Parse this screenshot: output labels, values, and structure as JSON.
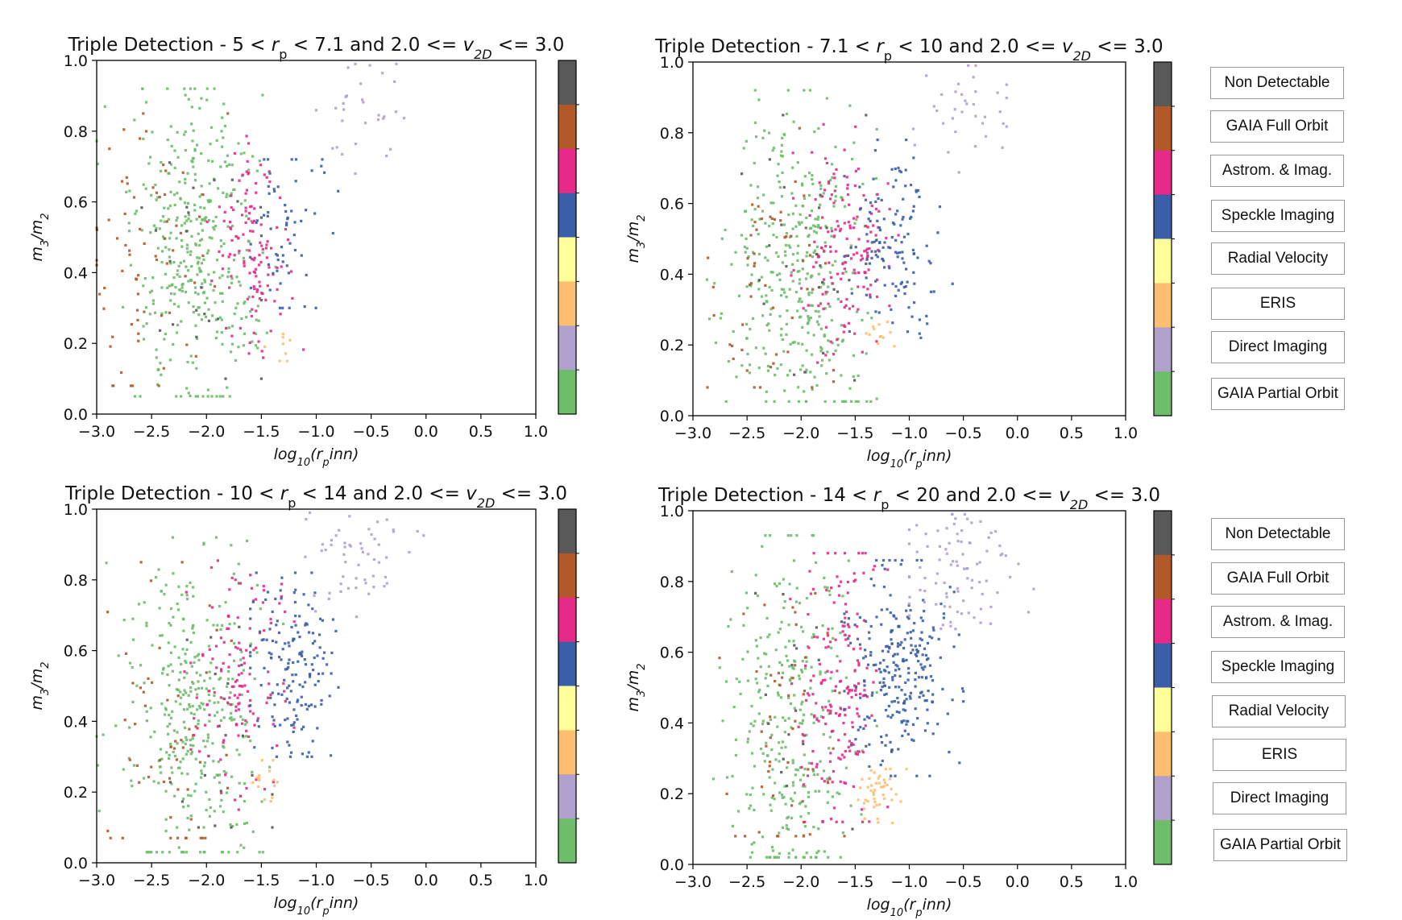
{
  "colors": {
    "Non Detectable": "#595959",
    "GAIA Full Orbit": "#b15928",
    "Astrom. & Imag.": "#e7298a",
    "Speckle Imaging": "#3a5fa8",
    "Radial Velocity": "#ffff99",
    "ERIS": "#fdbf6f",
    "Direct Imaging": "#b2a0cc",
    "GAIA Partial Orbit": "#6dbd6a"
  },
  "colorbar_order_top_to_bottom": [
    "Non Detectable",
    "GAIA Full Orbit",
    "Astrom. & Imag.",
    "Speckle Imaging",
    "Radial Velocity",
    "ERIS",
    "Direct Imaging",
    "GAIA Partial Orbit"
  ],
  "legend_top": [
    "Non Detectable",
    "GAIA Full Orbit",
    "Astrom. & Imag.",
    "Speckle Imaging",
    "Radial Velocity",
    "ERIS",
    "Direct Imaging",
    "GAIA Partial Orbit"
  ],
  "legend_bottom": [
    "Non Detectable",
    "GAIA Full Orbit",
    "Astrom. & Imag.",
    "Speckle Imaging",
    "Radial Velocity",
    "ERIS",
    "Direct Imaging",
    "GAIA Partial Orbit"
  ],
  "chart_data": [
    {
      "type": "scatter",
      "title_prefix": "Triple Detection - ",
      "rp_low": "5",
      "rp_high": "7.1",
      "v_low": "2.0",
      "v_high": "3.0",
      "xlabel": "log10(rp inn)",
      "ylabel": "m3/m2",
      "xlim": [
        -3.0,
        1.0
      ],
      "ylim": [
        0.0,
        1.0
      ],
      "xticks": [
        "−3.0",
        "−2.5",
        "−2.0",
        "−1.5",
        "−1.0",
        "−0.5",
        "0.0",
        "0.5",
        "1.0"
      ],
      "yticks": [
        "0.0",
        "0.2",
        "0.4",
        "0.6",
        "0.8",
        "1.0"
      ],
      "clusters": [
        {
          "class": "GAIA Partial Orbit",
          "n": 380,
          "cx": -2.1,
          "cy": 0.45,
          "sx": 0.28,
          "sy": 0.22,
          "xmin": -3.0,
          "xmax": -1.3,
          "ymin": 0.05,
          "ymax": 0.92
        },
        {
          "class": "GAIA Full Orbit",
          "n": 70,
          "cx": -2.5,
          "cy": 0.4,
          "sx": 0.28,
          "sy": 0.25,
          "xmin": -3.0,
          "xmax": -1.7,
          "ymin": 0.08,
          "ymax": 0.85
        },
        {
          "class": "Non Detectable",
          "n": 25,
          "cx": -2.0,
          "cy": 0.4,
          "sx": 0.35,
          "sy": 0.22,
          "xmin": -2.8,
          "xmax": -1.5,
          "ymin": 0.1,
          "ymax": 0.85
        },
        {
          "class": "Astrom. & Imag.",
          "n": 120,
          "cx": -1.6,
          "cy": 0.48,
          "sx": 0.18,
          "sy": 0.16,
          "xmin": -2.0,
          "xmax": -1.1,
          "ymin": 0.15,
          "ymax": 0.85
        },
        {
          "class": "Speckle Imaging",
          "n": 60,
          "cx": -1.3,
          "cy": 0.52,
          "sx": 0.16,
          "sy": 0.12,
          "xmin": -1.6,
          "xmax": -0.8,
          "ymin": 0.3,
          "ymax": 0.72
        },
        {
          "class": "ERIS",
          "n": 8,
          "cx": -1.35,
          "cy": 0.2,
          "sx": 0.08,
          "sy": 0.03,
          "xmin": -1.5,
          "xmax": -1.1,
          "ymin": 0.15,
          "ymax": 0.25
        },
        {
          "class": "Direct Imaging",
          "n": 30,
          "cx": -0.6,
          "cy": 0.85,
          "sx": 0.2,
          "sy": 0.08,
          "xmin": -1.0,
          "xmax": -0.2,
          "ymin": 0.68,
          "ymax": 0.99
        }
      ]
    },
    {
      "type": "scatter",
      "title_prefix": "Triple Detection - ",
      "rp_low": "7.1",
      "rp_high": "10",
      "v_low": "2.0",
      "v_high": "3.0",
      "xlabel": "log10(rp inn)",
      "ylabel": "m3/m2",
      "xlim": [
        -3.0,
        1.0
      ],
      "ylim": [
        0.0,
        1.0
      ],
      "xticks": [
        "−3.0",
        "−2.5",
        "−2.0",
        "−1.5",
        "−1.0",
        "−0.5",
        "0.0",
        "0.5",
        "1.0"
      ],
      "yticks": [
        "0.0",
        "0.2",
        "0.4",
        "0.6",
        "0.8",
        "1.0"
      ],
      "clusters": [
        {
          "class": "GAIA Partial Orbit",
          "n": 360,
          "cx": -2.0,
          "cy": 0.42,
          "sx": 0.3,
          "sy": 0.23,
          "xmin": -3.0,
          "xmax": -1.3,
          "ymin": 0.04,
          "ymax": 0.92
        },
        {
          "class": "GAIA Full Orbit",
          "n": 55,
          "cx": -2.3,
          "cy": 0.38,
          "sx": 0.28,
          "sy": 0.22,
          "xmin": -2.9,
          "xmax": -1.7,
          "ymin": 0.08,
          "ymax": 0.82
        },
        {
          "class": "Non Detectable",
          "n": 25,
          "cx": -1.9,
          "cy": 0.4,
          "sx": 0.35,
          "sy": 0.22,
          "xmin": -2.8,
          "xmax": -1.4,
          "ymin": 0.1,
          "ymax": 0.85
        },
        {
          "class": "Astrom. & Imag.",
          "n": 150,
          "cx": -1.6,
          "cy": 0.5,
          "sx": 0.2,
          "sy": 0.15,
          "xmin": -2.1,
          "xmax": -1.1,
          "ymin": 0.15,
          "ymax": 0.85
        },
        {
          "class": "Speckle Imaging",
          "n": 130,
          "cx": -1.15,
          "cy": 0.5,
          "sx": 0.2,
          "sy": 0.14,
          "xmin": -1.6,
          "xmax": -0.6,
          "ymin": 0.22,
          "ymax": 0.78
        },
        {
          "class": "ERIS",
          "n": 12,
          "cx": -1.3,
          "cy": 0.22,
          "sx": 0.12,
          "sy": 0.03,
          "xmin": -1.6,
          "xmax": -1.0,
          "ymin": 0.17,
          "ymax": 0.28
        },
        {
          "class": "Direct Imaging",
          "n": 35,
          "cx": -0.5,
          "cy": 0.85,
          "sx": 0.22,
          "sy": 0.09,
          "xmin": -1.0,
          "xmax": -0.1,
          "ymin": 0.6,
          "ymax": 0.99
        }
      ]
    },
    {
      "type": "scatter",
      "title_prefix": "Triple Detection - ",
      "rp_low": "10",
      "rp_high": "14",
      "v_low": "2.0",
      "v_high": "3.0",
      "xlabel": "log10(rp inn)",
      "ylabel": "m3/m2",
      "xlim": [
        -3.0,
        1.0
      ],
      "ylim": [
        0.0,
        1.0
      ],
      "xticks": [
        "−3.0",
        "−2.5",
        "−2.0",
        "−1.5",
        "−1.0",
        "−0.5",
        "0.0",
        "0.5",
        "1.0"
      ],
      "yticks": [
        "0.0",
        "0.2",
        "0.4",
        "0.6",
        "0.8",
        "1.0"
      ],
      "clusters": [
        {
          "class": "GAIA Partial Orbit",
          "n": 340,
          "cx": -2.1,
          "cy": 0.42,
          "sx": 0.3,
          "sy": 0.24,
          "xmin": -3.0,
          "xmax": -1.3,
          "ymin": 0.03,
          "ymax": 0.92
        },
        {
          "class": "GAIA Full Orbit",
          "n": 55,
          "cx": -2.4,
          "cy": 0.35,
          "sx": 0.28,
          "sy": 0.24,
          "xmin": -2.9,
          "xmax": -1.7,
          "ymin": 0.07,
          "ymax": 0.85
        },
        {
          "class": "Non Detectable",
          "n": 20,
          "cx": -2.0,
          "cy": 0.4,
          "sx": 0.35,
          "sy": 0.22,
          "xmin": -2.8,
          "xmax": -1.4,
          "ymin": 0.1,
          "ymax": 0.85
        },
        {
          "class": "Astrom. & Imag.",
          "n": 130,
          "cx": -1.7,
          "cy": 0.52,
          "sx": 0.2,
          "sy": 0.16,
          "xmin": -2.2,
          "xmax": -1.2,
          "ymin": 0.15,
          "ymax": 0.88
        },
        {
          "class": "Speckle Imaging",
          "n": 160,
          "cx": -1.2,
          "cy": 0.55,
          "sx": 0.2,
          "sy": 0.13,
          "xmin": -1.6,
          "xmax": -0.7,
          "ymin": 0.3,
          "ymax": 0.82
        },
        {
          "class": "ERIS",
          "n": 15,
          "cx": -1.45,
          "cy": 0.22,
          "sx": 0.1,
          "sy": 0.04,
          "xmin": -1.7,
          "xmax": -1.0,
          "ymin": 0.13,
          "ymax": 0.29
        },
        {
          "class": "Direct Imaging",
          "n": 55,
          "cx": -0.6,
          "cy": 0.85,
          "sx": 0.25,
          "sy": 0.08,
          "xmin": -1.1,
          "xmax": 0.1,
          "ymin": 0.6,
          "ymax": 0.99
        }
      ]
    },
    {
      "type": "scatter",
      "title_prefix": "Triple Detection - ",
      "rp_low": "14",
      "rp_high": "20",
      "v_low": "2.0",
      "v_high": "3.0",
      "xlabel": "log10(rp inn)",
      "ylabel": "m3/m2",
      "xlim": [
        -3.0,
        1.0
      ],
      "ylim": [
        0.0,
        1.0
      ],
      "xticks": [
        "−3.0",
        "−2.5",
        "−2.0",
        "−1.5",
        "−1.0",
        "−0.5",
        "0.0",
        "0.5",
        "1.0"
      ],
      "yticks": [
        "0.0",
        "0.2",
        "0.4",
        "0.6",
        "0.8",
        "1.0"
      ],
      "clusters": [
        {
          "class": "GAIA Partial Orbit",
          "n": 300,
          "cx": -2.1,
          "cy": 0.4,
          "sx": 0.3,
          "sy": 0.25,
          "xmin": -3.0,
          "xmax": -1.3,
          "ymin": 0.02,
          "ymax": 0.93
        },
        {
          "class": "GAIA Full Orbit",
          "n": 50,
          "cx": -2.2,
          "cy": 0.35,
          "sx": 0.25,
          "sy": 0.25,
          "xmin": -2.8,
          "xmax": -1.6,
          "ymin": 0.08,
          "ymax": 0.92
        },
        {
          "class": "Non Detectable",
          "n": 20,
          "cx": -2.0,
          "cy": 0.4,
          "sx": 0.35,
          "sy": 0.22,
          "xmin": -2.8,
          "xmax": -1.4,
          "ymin": 0.1,
          "ymax": 0.85
        },
        {
          "class": "Astrom. & Imag.",
          "n": 180,
          "cx": -1.65,
          "cy": 0.5,
          "sx": 0.18,
          "sy": 0.18,
          "xmin": -2.1,
          "xmax": -1.2,
          "ymin": 0.12,
          "ymax": 0.88
        },
        {
          "class": "Speckle Imaging",
          "n": 260,
          "cx": -1.1,
          "cy": 0.55,
          "sx": 0.22,
          "sy": 0.14,
          "xmin": -1.6,
          "xmax": -0.5,
          "ymin": 0.25,
          "ymax": 0.86
        },
        {
          "class": "ERIS",
          "n": 45,
          "cx": -1.3,
          "cy": 0.2,
          "sx": 0.12,
          "sy": 0.04,
          "xmin": -1.6,
          "xmax": -0.95,
          "ymin": 0.1,
          "ymax": 0.27
        },
        {
          "class": "Direct Imaging",
          "n": 90,
          "cx": -0.55,
          "cy": 0.82,
          "sx": 0.25,
          "sy": 0.1,
          "xmin": -1.0,
          "xmax": 0.15,
          "ymin": 0.55,
          "ymax": 0.99
        }
      ]
    }
  ]
}
